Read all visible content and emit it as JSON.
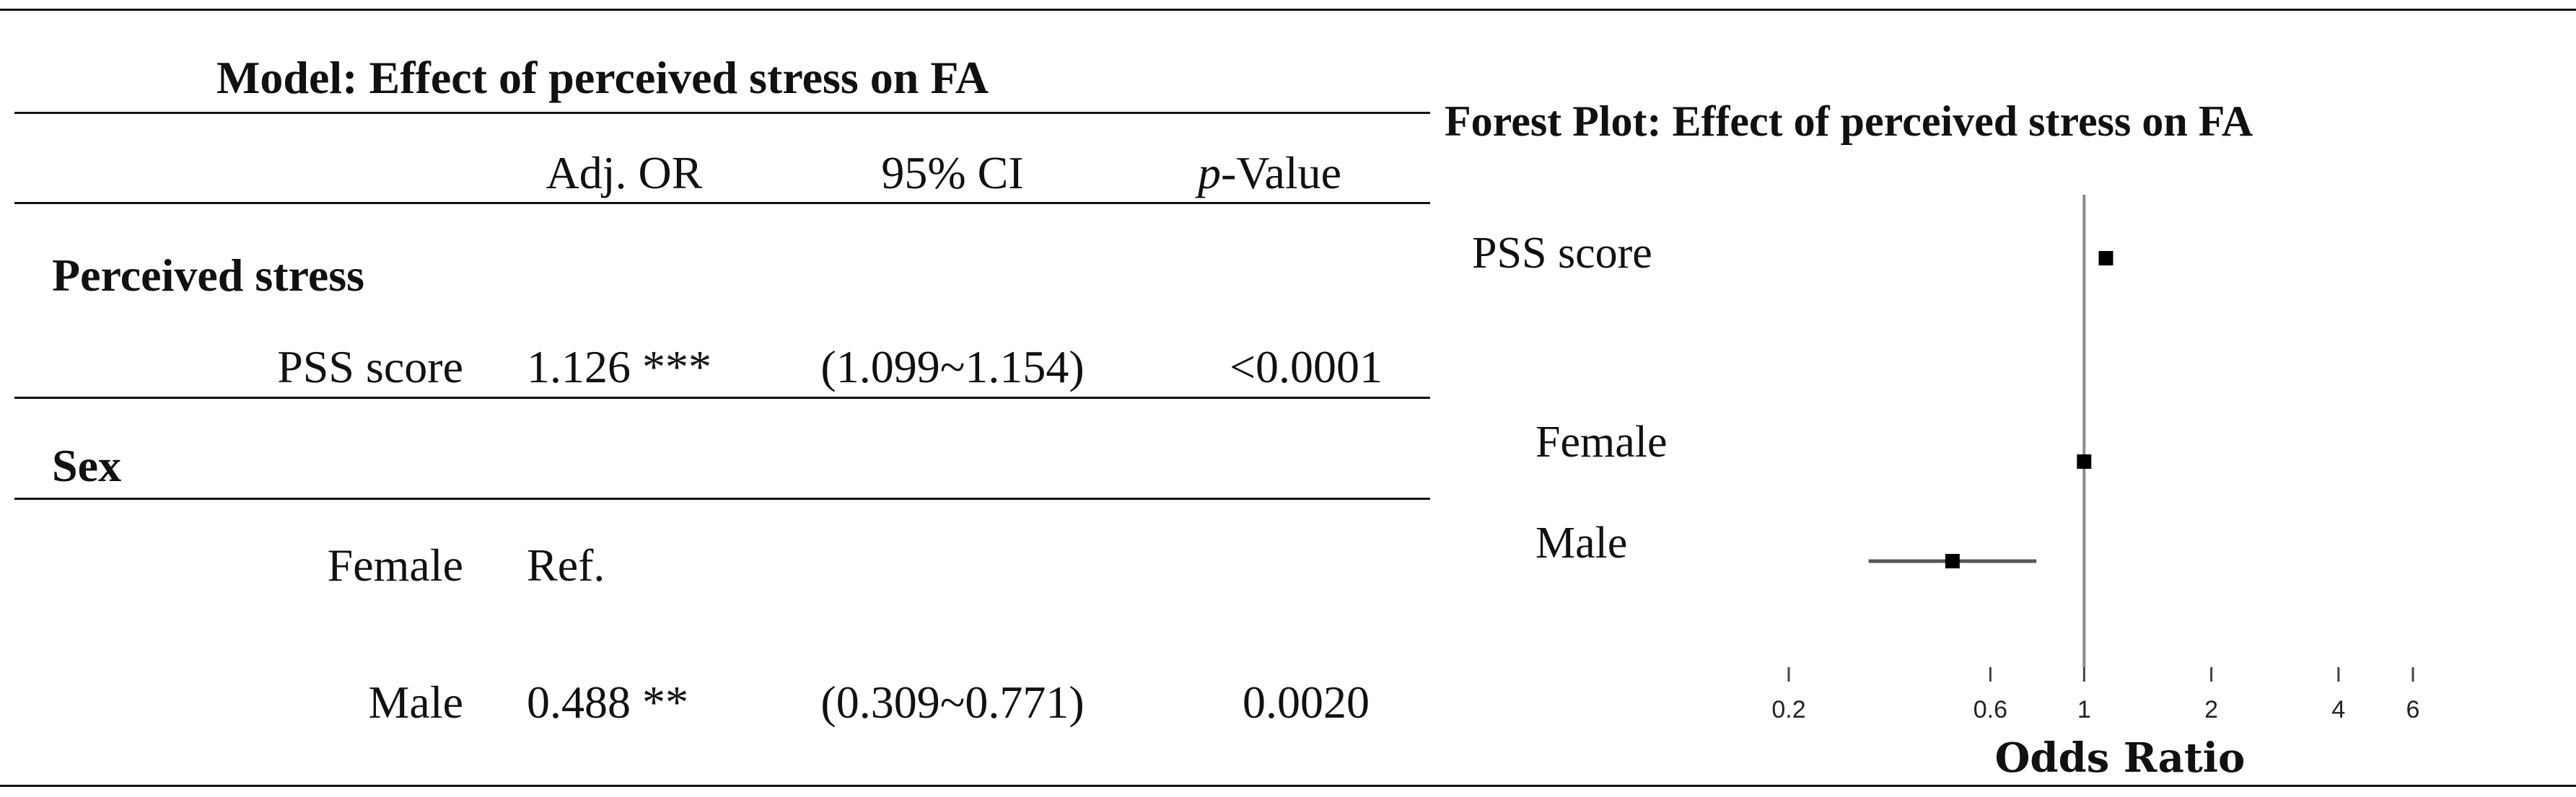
{
  "table": {
    "title": "Model: Effect of perceived stress on FA",
    "headers": {
      "adj_or": "Adj. OR",
      "ci": "95% CI",
      "p_italic": "p",
      "p_rest": "-Value"
    },
    "sections": [
      {
        "heading": "Perceived stress",
        "rows": [
          {
            "label": "PSS score",
            "or": "1.126 ***",
            "ci": "(1.099~1.154)",
            "p": "<0.0001"
          }
        ]
      },
      {
        "heading": "Sex",
        "rows": [
          {
            "label": "Female",
            "or": "Ref.",
            "ci": "",
            "p": ""
          },
          {
            "label": "Male",
            "or": "0.488 **",
            "ci": "(0.309~0.771)",
            "p": "0.0020"
          }
        ]
      }
    ]
  },
  "chart_data": {
    "type": "forest",
    "title": "Forest Plot: Effect of perceived stress on FA",
    "xlabel": "Odds Ratio",
    "x_scale": "log",
    "x_ticks": [
      0.2,
      0.6,
      1,
      2,
      4,
      6
    ],
    "x_tick_labels": [
      "0.2",
      "0.6",
      "1",
      "2",
      "4",
      "6"
    ],
    "reference_line": 1,
    "rows": [
      {
        "label": "PSS score",
        "estimate": 1.126,
        "lower": 1.099,
        "upper": 1.154
      },
      {
        "label": "Female",
        "estimate": 1.0,
        "lower": null,
        "upper": null
      },
      {
        "label": "Male",
        "estimate": 0.488,
        "lower": 0.309,
        "upper": 0.771
      }
    ]
  }
}
